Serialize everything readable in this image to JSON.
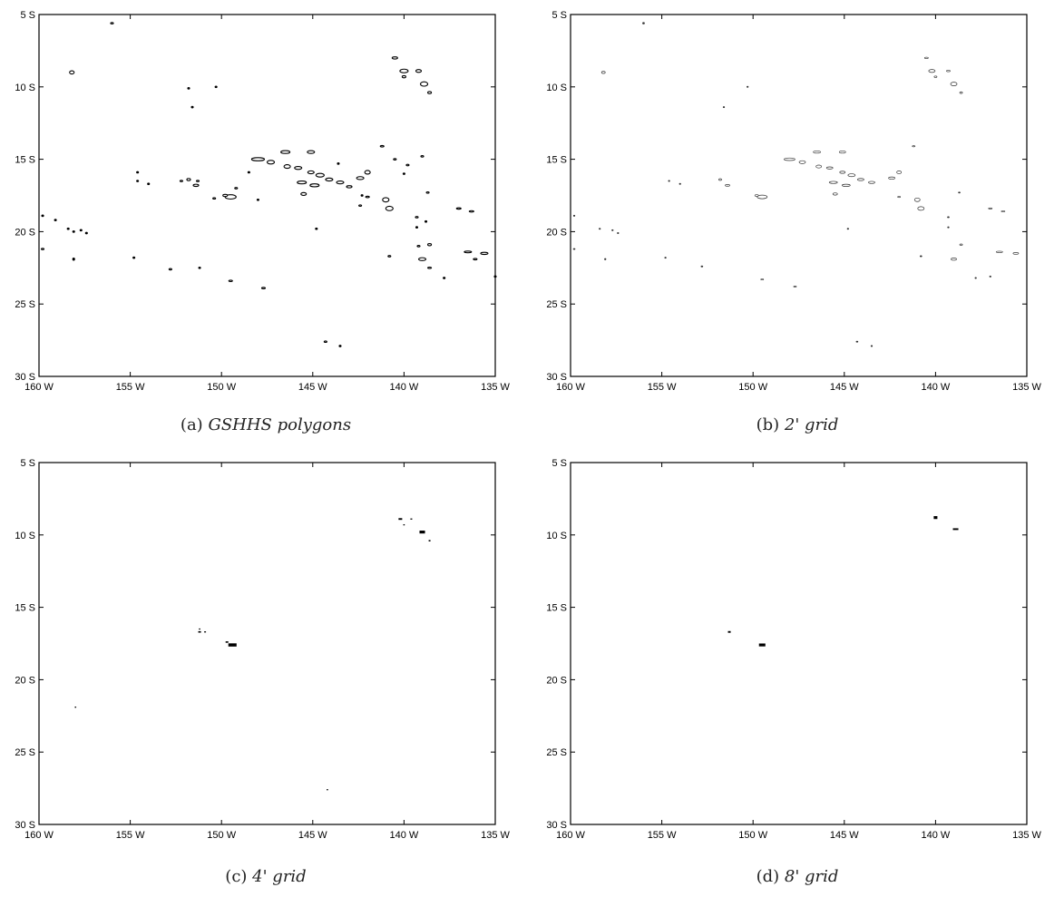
{
  "axes": {
    "x_ticks": [
      "160 W",
      "155 W",
      "150 W",
      "145 W",
      "140 W",
      "135 W"
    ],
    "y_ticks": [
      "5 S",
      "10 S",
      "15 S",
      "20 S",
      "25 S",
      "30 S"
    ],
    "lon_range": [
      -160,
      -135
    ],
    "lat_range": [
      -30,
      -5
    ]
  },
  "panels": [
    {
      "id": "a",
      "caption_prefix": "(a)",
      "caption_text": "GSHHS polygons",
      "style": "outline",
      "islands": [
        [
          -156.0,
          -5.6,
          0.15,
          0.1
        ],
        [
          -158.2,
          -9.0,
          0.25,
          0.22
        ],
        [
          -151.8,
          -10.1,
          0.1,
          0.1
        ],
        [
          -150.3,
          -10.0,
          0.1,
          0.1
        ],
        [
          -151.6,
          -11.4,
          0.1,
          0.1
        ],
        [
          -140.5,
          -8.0,
          0.3,
          0.15
        ],
        [
          -140.0,
          -8.9,
          0.45,
          0.25
        ],
        [
          -140.0,
          -9.3,
          0.2,
          0.15
        ],
        [
          -139.2,
          -8.9,
          0.3,
          0.2
        ],
        [
          -138.9,
          -9.8,
          0.4,
          0.3
        ],
        [
          -138.6,
          -10.4,
          0.2,
          0.15
        ],
        [
          -148.0,
          -15.0,
          0.7,
          0.22
        ],
        [
          -147.3,
          -15.2,
          0.4,
          0.25
        ],
        [
          -146.5,
          -14.5,
          0.5,
          0.2
        ],
        [
          -145.1,
          -14.5,
          0.4,
          0.2
        ],
        [
          -146.4,
          -15.5,
          0.35,
          0.25
        ],
        [
          -145.8,
          -15.6,
          0.4,
          0.2
        ],
        [
          -145.1,
          -15.9,
          0.35,
          0.2
        ],
        [
          -144.6,
          -16.1,
          0.45,
          0.25
        ],
        [
          -144.1,
          -16.4,
          0.4,
          0.2
        ],
        [
          -143.5,
          -16.6,
          0.4,
          0.2
        ],
        [
          -143.0,
          -16.9,
          0.3,
          0.15
        ],
        [
          -142.4,
          -16.3,
          0.4,
          0.2
        ],
        [
          -142.0,
          -15.9,
          0.3,
          0.25
        ],
        [
          -145.6,
          -16.6,
          0.5,
          0.2
        ],
        [
          -144.9,
          -16.8,
          0.5,
          0.2
        ],
        [
          -145.5,
          -17.4,
          0.3,
          0.2
        ],
        [
          -141.2,
          -14.1,
          0.2,
          0.1
        ],
        [
          -140.5,
          -15.0,
          0.15,
          0.1
        ],
        [
          -139.8,
          -15.4,
          0.15,
          0.1
        ],
        [
          -141.0,
          -17.8,
          0.35,
          0.3
        ],
        [
          -140.8,
          -18.4,
          0.4,
          0.3
        ],
        [
          -142.0,
          -17.6,
          0.2,
          0.1
        ],
        [
          -142.4,
          -18.2,
          0.15,
          0.1
        ],
        [
          -138.7,
          -17.3,
          0.15,
          0.1
        ],
        [
          -139.0,
          -14.8,
          0.15,
          0.1
        ],
        [
          -137.0,
          -18.4,
          0.25,
          0.1
        ],
        [
          -136.3,
          -18.6,
          0.25,
          0.1
        ],
        [
          -139.3,
          -19.0,
          0.15,
          0.1
        ],
        [
          -138.8,
          -19.3,
          0.1,
          0.1
        ],
        [
          -139.3,
          -19.7,
          0.1,
          0.1
        ],
        [
          -138.6,
          -20.9,
          0.2,
          0.15
        ],
        [
          -139.2,
          -21.0,
          0.15,
          0.1
        ],
        [
          -139.0,
          -21.9,
          0.4,
          0.2
        ],
        [
          -138.6,
          -22.5,
          0.2,
          0.1
        ],
        [
          -140.8,
          -21.7,
          0.15,
          0.1
        ],
        [
          -136.5,
          -21.4,
          0.4,
          0.12
        ],
        [
          -135.6,
          -21.5,
          0.4,
          0.15
        ],
        [
          -136.1,
          -21.9,
          0.2,
          0.1
        ],
        [
          -137.8,
          -23.2,
          0.1,
          0.1
        ],
        [
          -149.5,
          -17.6,
          0.6,
          0.3
        ],
        [
          -149.8,
          -17.5,
          0.25,
          0.15
        ],
        [
          -151.4,
          -16.8,
          0.3,
          0.15
        ],
        [
          -151.8,
          -16.4,
          0.2,
          0.15
        ],
        [
          -152.2,
          -16.5,
          0.15,
          0.1
        ],
        [
          -151.3,
          -16.5,
          0.15,
          0.1
        ],
        [
          -154.6,
          -16.5,
          0.1,
          0.1
        ],
        [
          -154.0,
          -16.7,
          0.1,
          0.1
        ],
        [
          -154.6,
          -15.9,
          0.1,
          0.1
        ],
        [
          -149.2,
          -17.0,
          0.15,
          0.1
        ],
        [
          -148.0,
          -17.8,
          0.1,
          0.1
        ],
        [
          -150.4,
          -17.7,
          0.15,
          0.1
        ],
        [
          -148.5,
          -15.9,
          0.1,
          0.1
        ],
        [
          -159.8,
          -18.9,
          0.1,
          0.1
        ],
        [
          -159.1,
          -19.2,
          0.1,
          0.1
        ],
        [
          -158.4,
          -19.8,
          0.1,
          0.1
        ],
        [
          -158.1,
          -20.0,
          0.1,
          0.1
        ],
        [
          -157.7,
          -19.9,
          0.1,
          0.1
        ],
        [
          -157.4,
          -20.1,
          0.1,
          0.1
        ],
        [
          -159.8,
          -21.2,
          0.15,
          0.1
        ],
        [
          -158.1,
          -21.9,
          0.1,
          0.15
        ],
        [
          -154.8,
          -21.8,
          0.1,
          0.1
        ],
        [
          -152.8,
          -22.6,
          0.15,
          0.1
        ],
        [
          -151.2,
          -22.5,
          0.1,
          0.1
        ],
        [
          -149.5,
          -23.4,
          0.2,
          0.1
        ],
        [
          -147.7,
          -23.9,
          0.2,
          0.1
        ],
        [
          -144.8,
          -19.8,
          0.1,
          0.1
        ],
        [
          -144.3,
          -27.6,
          0.15,
          0.1
        ],
        [
          -143.5,
          -27.9,
          0.1,
          0.1
        ],
        [
          -135.0,
          -23.1,
          0.1,
          0.1
        ],
        [
          -143.6,
          -15.3,
          0.1,
          0.1
        ],
        [
          -142.3,
          -17.5,
          0.1,
          0.1
        ],
        [
          -140.0,
          -16.0,
          0.1,
          0.1
        ]
      ]
    },
    {
      "id": "b",
      "caption_prefix": "(b)",
      "caption_text": "2' grid",
      "style": "thin",
      "islands": [
        [
          -156.0,
          -5.6,
          0.1,
          0.1
        ],
        [
          -158.2,
          -9.0,
          0.2,
          0.15
        ],
        [
          -150.3,
          -10.0,
          0.08,
          0.08
        ],
        [
          -151.6,
          -11.4,
          0.08,
          0.08
        ],
        [
          -140.5,
          -8.0,
          0.2,
          0.1
        ],
        [
          -140.2,
          -8.9,
          0.35,
          0.2
        ],
        [
          -140.0,
          -9.3,
          0.15,
          0.1
        ],
        [
          -139.0,
          -9.8,
          0.35,
          0.25
        ],
        [
          -138.6,
          -10.4,
          0.15,
          0.12
        ],
        [
          -139.3,
          -8.9,
          0.2,
          0.1
        ],
        [
          -148.0,
          -15.0,
          0.6,
          0.18
        ],
        [
          -147.3,
          -15.2,
          0.35,
          0.2
        ],
        [
          -146.5,
          -14.5,
          0.4,
          0.15
        ],
        [
          -145.1,
          -14.5,
          0.35,
          0.15
        ],
        [
          -146.4,
          -15.5,
          0.3,
          0.2
        ],
        [
          -145.8,
          -15.6,
          0.35,
          0.15
        ],
        [
          -145.1,
          -15.9,
          0.3,
          0.15
        ],
        [
          -144.6,
          -16.1,
          0.4,
          0.2
        ],
        [
          -144.1,
          -16.4,
          0.35,
          0.15
        ],
        [
          -143.5,
          -16.6,
          0.35,
          0.15
        ],
        [
          -142.4,
          -16.3,
          0.35,
          0.15
        ],
        [
          -142.0,
          -15.9,
          0.25,
          0.2
        ],
        [
          -145.6,
          -16.6,
          0.45,
          0.15
        ],
        [
          -144.9,
          -16.8,
          0.45,
          0.15
        ],
        [
          -145.5,
          -17.4,
          0.25,
          0.15
        ],
        [
          -141.2,
          -14.1,
          0.15,
          0.08
        ],
        [
          -141.0,
          -17.8,
          0.3,
          0.25
        ],
        [
          -140.8,
          -18.4,
          0.35,
          0.25
        ],
        [
          -142.0,
          -17.6,
          0.15,
          0.08
        ],
        [
          -138.7,
          -17.3,
          0.1,
          0.08
        ],
        [
          -137.0,
          -18.4,
          0.2,
          0.08
        ],
        [
          -136.3,
          -18.6,
          0.2,
          0.08
        ],
        [
          -139.3,
          -19.0,
          0.1,
          0.08
        ],
        [
          -139.3,
          -19.7,
          0.08,
          0.08
        ],
        [
          -138.6,
          -20.9,
          0.15,
          0.1
        ],
        [
          -139.0,
          -21.9,
          0.3,
          0.15
        ],
        [
          -140.8,
          -21.7,
          0.1,
          0.08
        ],
        [
          -136.5,
          -21.4,
          0.35,
          0.1
        ],
        [
          -135.6,
          -21.5,
          0.3,
          0.12
        ],
        [
          -137.8,
          -23.2,
          0.08,
          0.08
        ],
        [
          -149.5,
          -17.6,
          0.55,
          0.25
        ],
        [
          -149.8,
          -17.5,
          0.2,
          0.12
        ],
        [
          -151.4,
          -16.8,
          0.25,
          0.12
        ],
        [
          -151.8,
          -16.4,
          0.15,
          0.12
        ],
        [
          -154.6,
          -16.5,
          0.08,
          0.08
        ],
        [
          -154.0,
          -16.7,
          0.08,
          0.08
        ],
        [
          -159.8,
          -18.9,
          0.08,
          0.08
        ],
        [
          -158.4,
          -19.8,
          0.08,
          0.08
        ],
        [
          -157.7,
          -19.9,
          0.08,
          0.08
        ],
        [
          -157.4,
          -20.1,
          0.08,
          0.08
        ],
        [
          -159.8,
          -21.2,
          0.1,
          0.08
        ],
        [
          -158.1,
          -21.9,
          0.08,
          0.1
        ],
        [
          -154.8,
          -21.8,
          0.08,
          0.08
        ],
        [
          -152.8,
          -22.4,
          0.1,
          0.08
        ],
        [
          -149.5,
          -23.3,
          0.15,
          0.08
        ],
        [
          -147.7,
          -23.8,
          0.15,
          0.08
        ],
        [
          -144.8,
          -19.8,
          0.08,
          0.08
        ],
        [
          -144.3,
          -27.6,
          0.1,
          0.08
        ],
        [
          -143.5,
          -27.9,
          0.08,
          0.08
        ],
        [
          -137.0,
          -23.1,
          0.08,
          0.08
        ]
      ]
    },
    {
      "id": "c",
      "caption_prefix": "(c)",
      "caption_text": "4' grid",
      "style": "filled",
      "islands": [
        [
          -140.2,
          -8.9,
          0.2,
          0.12
        ],
        [
          -139.6,
          -8.9,
          0.1,
          0.08
        ],
        [
          -140.0,
          -9.3,
          0.08,
          0.08
        ],
        [
          -139.0,
          -9.8,
          0.3,
          0.2
        ],
        [
          -138.6,
          -10.4,
          0.1,
          0.1
        ],
        [
          -149.4,
          -17.6,
          0.45,
          0.22
        ],
        [
          -149.7,
          -17.4,
          0.15,
          0.1
        ],
        [
          -151.2,
          -16.7,
          0.15,
          0.1
        ],
        [
          -150.9,
          -16.7,
          0.1,
          0.08
        ],
        [
          -151.2,
          -16.5,
          0.08,
          0.08
        ],
        [
          -158.0,
          -21.9,
          0.08,
          0.08
        ],
        [
          -144.2,
          -27.6,
          0.08,
          0.08
        ]
      ]
    },
    {
      "id": "d",
      "caption_prefix": "(d)",
      "caption_text": "8' grid",
      "style": "filled",
      "islands": [
        [
          -140.0,
          -8.8,
          0.2,
          0.2
        ],
        [
          -138.9,
          -9.6,
          0.3,
          0.12
        ],
        [
          -151.3,
          -16.7,
          0.15,
          0.12
        ],
        [
          -149.5,
          -17.6,
          0.35,
          0.2
        ]
      ]
    }
  ]
}
